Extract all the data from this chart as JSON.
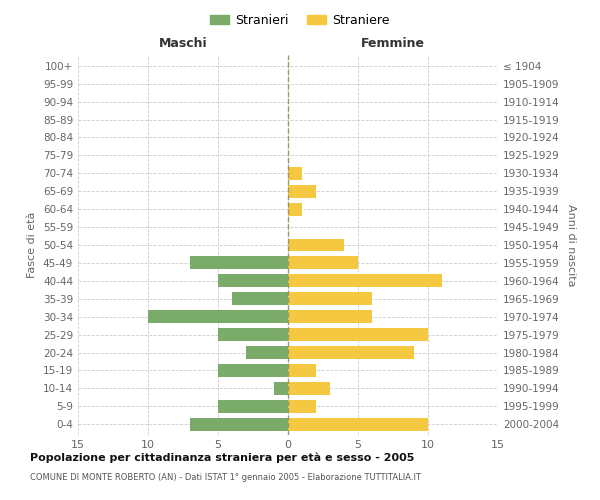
{
  "age_groups": [
    "0-4",
    "5-9",
    "10-14",
    "15-19",
    "20-24",
    "25-29",
    "30-34",
    "35-39",
    "40-44",
    "45-49",
    "50-54",
    "55-59",
    "60-64",
    "65-69",
    "70-74",
    "75-79",
    "80-84",
    "85-89",
    "90-94",
    "95-99",
    "100+"
  ],
  "birth_years": [
    "2000-2004",
    "1995-1999",
    "1990-1994",
    "1985-1989",
    "1980-1984",
    "1975-1979",
    "1970-1974",
    "1965-1969",
    "1960-1964",
    "1955-1959",
    "1950-1954",
    "1945-1949",
    "1940-1944",
    "1935-1939",
    "1930-1934",
    "1925-1929",
    "1920-1924",
    "1915-1919",
    "1910-1914",
    "1905-1909",
    "≤ 1904"
  ],
  "males": [
    7,
    5,
    1,
    5,
    3,
    5,
    10,
    4,
    5,
    7,
    0,
    0,
    0,
    0,
    0,
    0,
    0,
    0,
    0,
    0,
    0
  ],
  "females": [
    10,
    2,
    3,
    2,
    9,
    10,
    6,
    6,
    11,
    5,
    4,
    0,
    1,
    2,
    1,
    0,
    0,
    0,
    0,
    0,
    0
  ],
  "male_color": "#7aab6b",
  "female_color": "#f5c842",
  "xlim": 15,
  "title": "Popolazione per cittadinanza straniera per età e sesso - 2005",
  "subtitle": "COMUNE DI MONTE ROBERTO (AN) - Dati ISTAT 1° gennaio 2005 - Elaborazione TUTTITALIA.IT",
  "ylabel_left": "Fasce di età",
  "ylabel_right": "Anni di nascita",
  "xlabel_left": "Maschi",
  "xlabel_right": "Femmine",
  "legend_male": "Stranieri",
  "legend_female": "Straniere",
  "background_color": "#ffffff",
  "grid_color": "#cccccc",
  "text_color": "#666666"
}
